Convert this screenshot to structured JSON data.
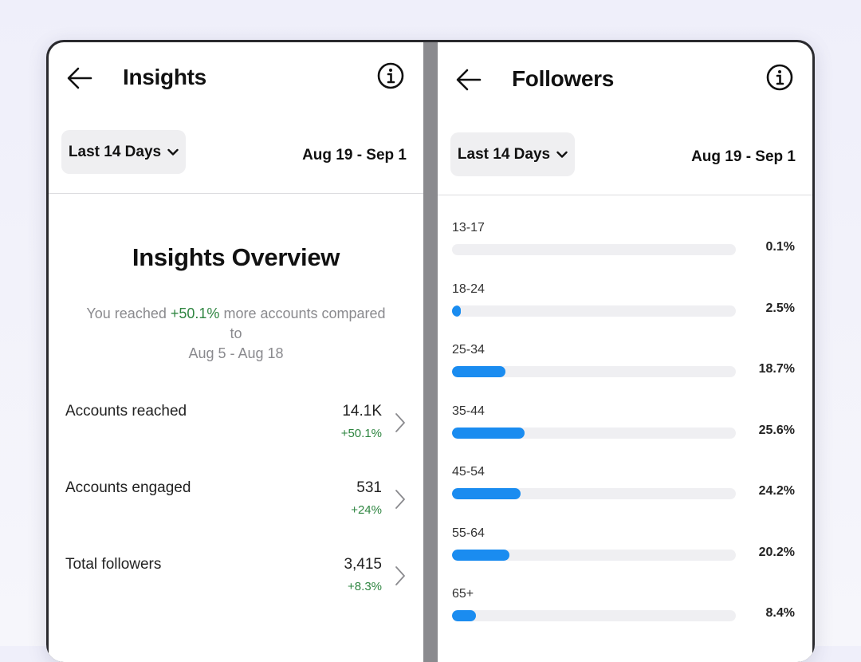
{
  "insights": {
    "title": "Insights",
    "range_label": "Last 14 Days",
    "date_range": "Aug 19 - Sep 1",
    "overview_title": "Insights Overview",
    "summary_prefix": "You reached",
    "summary_change": "+50.1%",
    "summary_suffix": "more accounts compared to",
    "summary_period": "Aug 5 - Aug 18",
    "metrics": [
      {
        "label": "Accounts reached",
        "value": "14.1K",
        "change": "+50.1%"
      },
      {
        "label": "Accounts engaged",
        "value": "531",
        "change": "+24%"
      },
      {
        "label": "Total followers",
        "value": "3,415",
        "change": "+8.3%"
      }
    ]
  },
  "followers": {
    "title": "Followers",
    "range_label": "Last 14 Days",
    "date_range": "Aug 19 - Sep 1",
    "age_groups": [
      {
        "label": "13-17",
        "percent": 0.1,
        "percent_label": "0.1%"
      },
      {
        "label": "18-24",
        "percent": 2.5,
        "percent_label": "2.5%"
      },
      {
        "label": "25-34",
        "percent": 18.7,
        "percent_label": "18.7%"
      },
      {
        "label": "35-44",
        "percent": 25.6,
        "percent_label": "25.6%"
      },
      {
        "label": "45-54",
        "percent": 24.2,
        "percent_label": "24.2%"
      },
      {
        "label": "55-64",
        "percent": 20.2,
        "percent_label": "20.2%"
      },
      {
        "label": "65+",
        "percent": 8.4,
        "percent_label": "8.4%"
      }
    ]
  },
  "icons": {
    "back": "arrow-left-icon",
    "info": "info-circle-icon",
    "dropdown": "chevron-down-icon",
    "row": "chevron-right-icon"
  },
  "colors": {
    "accent": "#1a8cf0",
    "positive": "#2e8540",
    "chip_background": "#efeff1",
    "bar_track": "#efeff2"
  }
}
